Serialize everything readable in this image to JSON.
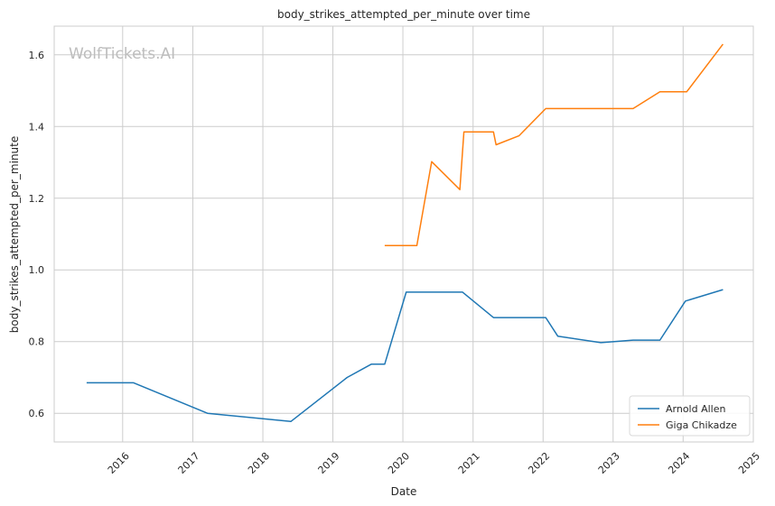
{
  "watermark": "WolfTickets.AI",
  "chart_data": {
    "type": "line",
    "title": "body_strikes_attempted_per_minute over time",
    "xlabel": "Date",
    "ylabel": "body_strikes_attempted_per_minute",
    "x_scale": "date",
    "xlim": [
      "2015-01-09",
      "2025-01-01"
    ],
    "ylim": [
      0.52,
      1.68
    ],
    "x_ticks": [
      "2016",
      "2017",
      "2018",
      "2019",
      "2020",
      "2021",
      "2022",
      "2023",
      "2024",
      "2025"
    ],
    "y_ticks": [
      0.6,
      0.8,
      1.0,
      1.2,
      1.4,
      1.6
    ],
    "y_tick_labels": [
      "0.6",
      "0.8",
      "1.0",
      "1.2",
      "1.4",
      "1.6"
    ],
    "grid": true,
    "legend_position": "bottom-right",
    "series": [
      {
        "name": "Arnold Allen",
        "color": "#1f77b4",
        "points": [
          {
            "x": "2015-06-27",
            "y": 0.685
          },
          {
            "x": "2016-02-27",
            "y": 0.685
          },
          {
            "x": "2017-03-18",
            "y": 0.6
          },
          {
            "x": "2018-05-27",
            "y": 0.577
          },
          {
            "x": "2019-03-16",
            "y": 0.7
          },
          {
            "x": "2019-07-20",
            "y": 0.737
          },
          {
            "x": "2019-09-28",
            "y": 0.737
          },
          {
            "x": "2020-01-18",
            "y": 0.938
          },
          {
            "x": "2020-11-07",
            "y": 0.938
          },
          {
            "x": "2021-04-17",
            "y": 0.867
          },
          {
            "x": "2022-01-15",
            "y": 0.867
          },
          {
            "x": "2022-03-19",
            "y": 0.815
          },
          {
            "x": "2022-10-29",
            "y": 0.797
          },
          {
            "x": "2023-04-15",
            "y": 0.804
          },
          {
            "x": "2023-09-02",
            "y": 0.804
          },
          {
            "x": "2024-01-13",
            "y": 0.913
          },
          {
            "x": "2024-07-27",
            "y": 0.945
          }
        ]
      },
      {
        "name": "Giga Chikadze",
        "color": "#ff7f0e",
        "points": [
          {
            "x": "2019-09-28",
            "y": 1.068
          },
          {
            "x": "2020-03-14",
            "y": 1.068
          },
          {
            "x": "2020-05-30",
            "y": 1.302
          },
          {
            "x": "2020-10-24",
            "y": 1.224
          },
          {
            "x": "2020-11-14",
            "y": 1.385
          },
          {
            "x": "2021-04-17",
            "y": 1.385
          },
          {
            "x": "2021-05-01",
            "y": 1.349
          },
          {
            "x": "2021-08-28",
            "y": 1.374
          },
          {
            "x": "2022-01-15",
            "y": 1.45
          },
          {
            "x": "2023-04-15",
            "y": 1.45
          },
          {
            "x": "2023-09-02",
            "y": 1.497
          },
          {
            "x": "2024-01-20",
            "y": 1.497
          },
          {
            "x": "2024-07-27",
            "y": 1.63
          }
        ]
      }
    ]
  }
}
